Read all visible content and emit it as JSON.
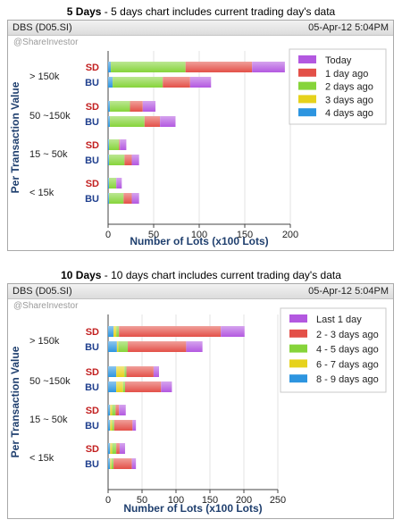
{
  "sections": [
    {
      "title_bold": "5 Days",
      "title_rest": " - 5 days chart includes current trading day's data",
      "header_left": "DBS (D05.SI)",
      "header_right": "05-Apr-12 5:04PM",
      "watermark": "@ShareInvestor",
      "chart_data": {
        "type": "bar",
        "orientation": "horizontal",
        "stacked": true,
        "xlabel": "Number of Lots (x100 Lots)",
        "ylabel": "Per Transaction Value",
        "xlim": [
          0,
          200
        ],
        "xticks": [
          0,
          50,
          100,
          150,
          200
        ],
        "groups": [
          "> 150k",
          "50 ~150k",
          "15 ~ 50k",
          "< 15k"
        ],
        "bar_labels": [
          "SD",
          "BU"
        ],
        "legend_position": "top-right",
        "series": [
          {
            "name": "4 days ago",
            "color": "#2d95e0",
            "values": {
              "> 150k": [
                3,
                5
              ],
              "50 ~150k": [
                2,
                2
              ],
              "15 ~ 50k": [
                1,
                1
              ],
              "< 15k": [
                1,
                1
              ]
            }
          },
          {
            "name": "3 days ago",
            "color": "#e6d21c",
            "values": {
              "> 150k": [
                0,
                0
              ],
              "50 ~150k": [
                0,
                0
              ],
              "15 ~ 50k": [
                0,
                0
              ],
              "< 15k": [
                0,
                0
              ]
            }
          },
          {
            "name": "2 days ago",
            "color": "#86d43a",
            "values": {
              "> 150k": [
                82,
                55
              ],
              "50 ~150k": [
                22,
                38
              ],
              "15 ~ 50k": [
                11,
                17
              ],
              "< 15k": [
                8,
                16
              ]
            }
          },
          {
            "name": "1 day ago",
            "color": "#e35048",
            "values": {
              "> 150k": [
                73,
                30
              ],
              "50 ~150k": [
                14,
                17
              ],
              "15 ~ 50k": [
                1,
                8
              ],
              "< 15k": [
                0,
                9
              ]
            }
          },
          {
            "name": "Today",
            "color": "#b358e0",
            "values": {
              "> 150k": [
                36,
                23
              ],
              "50 ~150k": [
                14,
                17
              ],
              "15 ~ 50k": [
                7,
                8
              ],
              "< 15k": [
                6,
                8
              ]
            }
          }
        ]
      }
    },
    {
      "title_bold": "10 Days",
      "title_rest": " - 10 days chart includes current trading day's data",
      "header_left": "DBS (D05.SI)",
      "header_right": "05-Apr-12 5:04PM",
      "watermark": "@ShareInvestor",
      "chart_data": {
        "type": "bar",
        "orientation": "horizontal",
        "stacked": true,
        "xlabel": "Number of Lots (x100 Lots)",
        "ylabel": "Per Transaction Value",
        "xlim": [
          0,
          250
        ],
        "xticks": [
          0,
          50,
          100,
          150,
          200,
          250
        ],
        "groups": [
          "> 150k",
          "50 ~150k",
          "15 ~ 50k",
          "< 15k"
        ],
        "bar_labels": [
          "SD",
          "BU"
        ],
        "legend_position": "top-right",
        "series": [
          {
            "name": "8 - 9 days ago",
            "color": "#2d95e0",
            "values": {
              "> 150k": [
                8,
                13
              ],
              "50 ~150k": [
                12,
                12
              ],
              "15 ~ 50k": [
                3,
                3
              ],
              "< 15k": [
                3,
                3
              ]
            }
          },
          {
            "name": "6 - 7 days ago",
            "color": "#e6d21c",
            "values": {
              "> 150k": [
                4,
                2
              ],
              "50 ~150k": [
                12,
                10
              ],
              "15 ~ 50k": [
                3,
                3
              ],
              "< 15k": [
                3,
                2
              ]
            }
          },
          {
            "name": "4 - 5 days ago",
            "color": "#86d43a",
            "values": {
              "> 150k": [
                4,
                14
              ],
              "50 ~150k": [
                3,
                3
              ],
              "15 ~ 50k": [
                5,
                3
              ],
              "< 15k": [
                6,
                3
              ]
            }
          },
          {
            "name": "2 - 3 days ago",
            "color": "#e35048",
            "values": {
              "> 150k": [
                150,
                86
              ],
              "50 ~150k": [
                40,
                53
              ],
              "15 ~ 50k": [
                5,
                27
              ],
              "< 15k": [
                5,
                27
              ]
            }
          },
          {
            "name": "Last 1 day",
            "color": "#b358e0",
            "values": {
              "> 150k": [
                35,
                24
              ],
              "50 ~150k": [
                8,
                16
              ],
              "15 ~ 50k": [
                10,
                5
              ],
              "< 15k": [
                8,
                6
              ]
            }
          }
        ]
      }
    }
  ]
}
